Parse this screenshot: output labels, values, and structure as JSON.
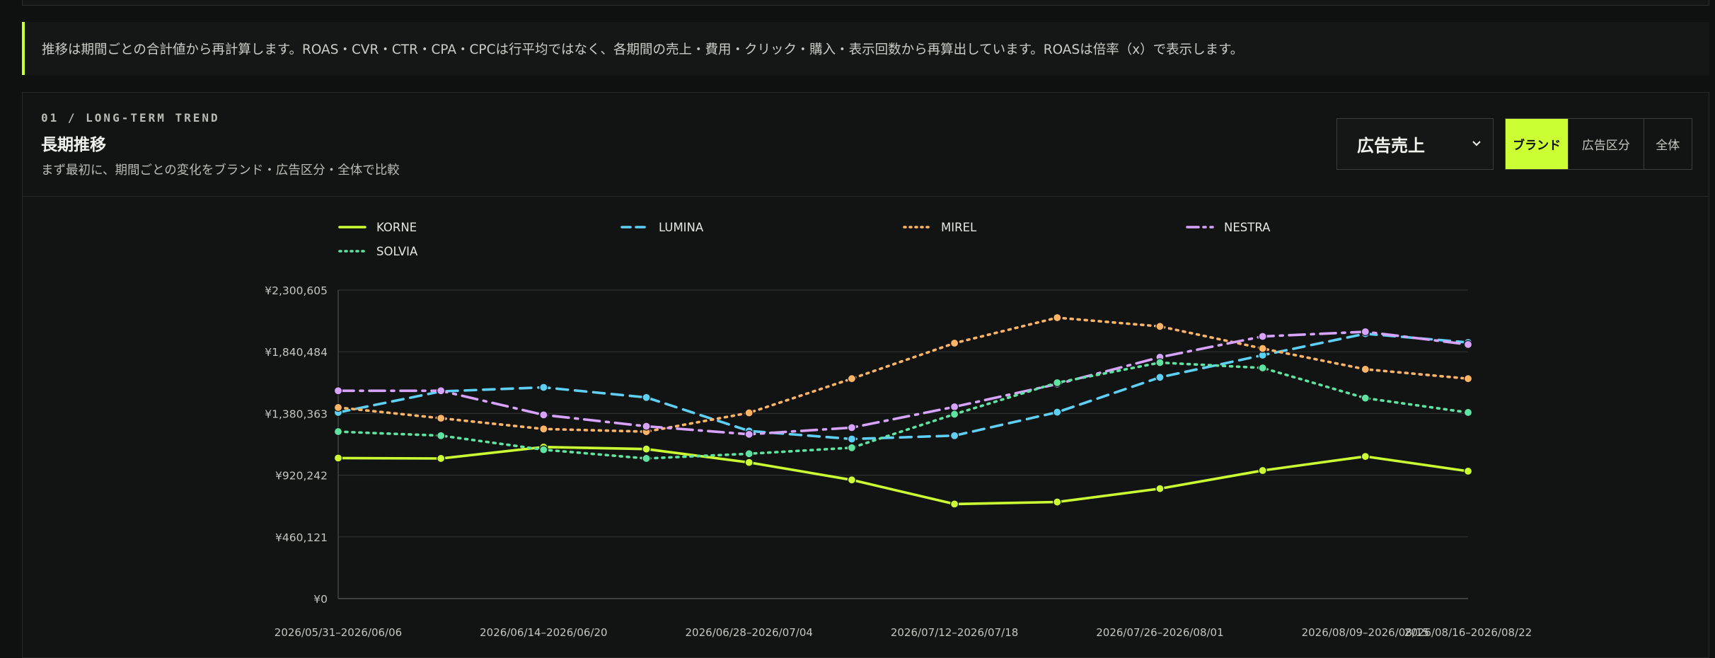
{
  "notice": {
    "text": "推移は期間ごとの合計値から再計算します。ROAS・CVR・CTR・CPA・CPCは行平均ではなく、各期間の売上・費用・クリック・購入・表示回数から再算出しています。ROASは倍率（x）で表示します。"
  },
  "section": {
    "eyebrow": "01 / LONG-TERM TREND",
    "title": "長期推移",
    "subtitle": "まず最初に、期間ごとの変化をブランド・広告区分・全体で比較"
  },
  "controls": {
    "metric_selected": "広告売上",
    "metric_icon": "chevron-down-icon",
    "segments": [
      {
        "label": "ブランド",
        "active": true
      },
      {
        "label": "広告区分",
        "active": false
      },
      {
        "label": "全体",
        "active": false
      }
    ]
  },
  "colors": {
    "accent": "#ccff33",
    "KORNE": "#ccff33",
    "LUMINA": "#5fd0f5",
    "MIREL": "#ffb466",
    "NESTRA": "#d7a3ff",
    "SOLVIA": "#5fe3a1"
  },
  "chart_data": {
    "type": "line",
    "ylim": [
      0,
      2300605
    ],
    "y_ticks": [
      0,
      460121,
      920242,
      1380363,
      1840484,
      2300605
    ],
    "y_tick_labels": [
      "¥0",
      "¥460,121",
      "¥920,242",
      "¥1,380,363",
      "¥1,840,484",
      "¥2,300,605"
    ],
    "x": [
      "2026/05/31–2026/06/06",
      "2026/06/07–2026/06/13",
      "2026/06/14–2026/06/20",
      "2026/06/21–2026/06/27",
      "2026/06/28–2026/07/04",
      "2026/07/05–2026/07/11",
      "2026/07/12–2026/07/18",
      "2026/07/19–2026/07/25",
      "2026/07/26–2026/08/01",
      "2026/08/02–2026/08/08",
      "2026/08/09–2026/08/15",
      "2026/08/16–2026/08/22"
    ],
    "x_tick_labels": [
      "2026/05/31–2026/06/06",
      "",
      "2026/06/14–2026/06/20",
      "",
      "2026/06/28–2026/07/04",
      "",
      "2026/07/12–2026/07/18",
      "",
      "2026/07/26–2026/08/01",
      "",
      "2026/08/09–2026/08/15",
      "2026/08/16–2026/08/22"
    ],
    "grid": true,
    "legend_position": "top",
    "series": [
      {
        "name": "KORNE",
        "style": "solid",
        "values": [
          1048000,
          1045000,
          1130000,
          1115000,
          1015000,
          885000,
          705000,
          720000,
          820000,
          955000,
          1060000,
          950000
        ]
      },
      {
        "name": "LUMINA",
        "style": "dashed",
        "values": [
          1388000,
          1545000,
          1575000,
          1500000,
          1250000,
          1190000,
          1215000,
          1390000,
          1650000,
          1815000,
          1975000,
          1910000
        ]
      },
      {
        "name": "MIREL",
        "style": "dotted",
        "values": [
          1425000,
          1345000,
          1265000,
          1245000,
          1385000,
          1640000,
          1905000,
          2095000,
          2030000,
          1865000,
          1710000,
          1640000
        ]
      },
      {
        "name": "NESTRA",
        "style": "dashdot",
        "values": [
          1550000,
          1550000,
          1370000,
          1285000,
          1225000,
          1275000,
          1430000,
          1600000,
          1800000,
          1955000,
          1990000,
          1895000
        ]
      },
      {
        "name": "SOLVIA",
        "style": "dotted",
        "values": [
          1245000,
          1215000,
          1110000,
          1045000,
          1080000,
          1125000,
          1375000,
          1610000,
          1760000,
          1720000,
          1495000,
          1388000
        ]
      }
    ]
  }
}
